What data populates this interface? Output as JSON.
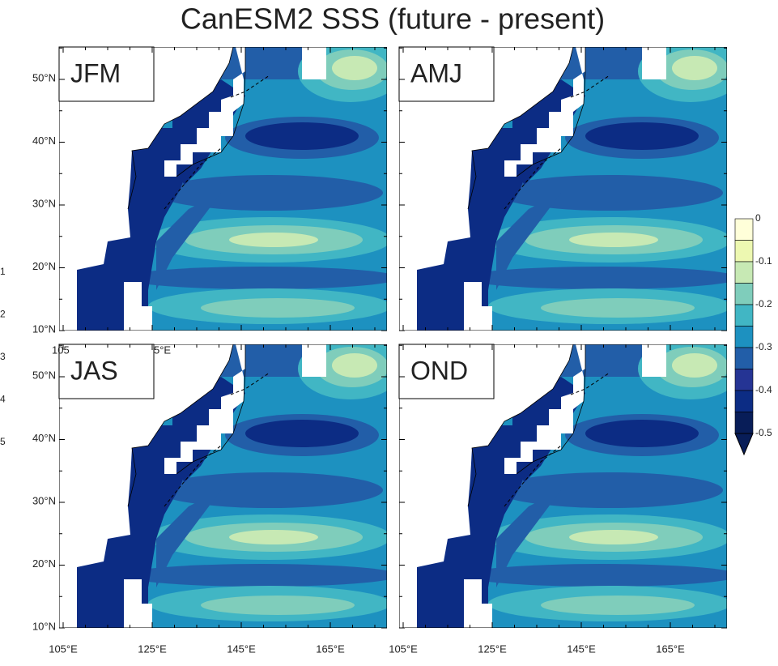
{
  "title": "CanESM2 SSS (future - present)",
  "panels": [
    {
      "label": "JFM"
    },
    {
      "label": "AMJ"
    },
    {
      "label": "JAS"
    },
    {
      "label": "OND"
    }
  ],
  "lat_labels": [
    "50°N",
    "40°N",
    "30°N",
    "20°N",
    "10°N"
  ],
  "lon_labels": [
    "105°E",
    "125°E",
    "145°E",
    "165°E"
  ],
  "colorbar": {
    "labels": [
      "0",
      "-0.1",
      "-0.2",
      "-0.3",
      "-0.4",
      "-0.5"
    ]
  },
  "edge_fragments": [
    "1",
    "2",
    "3",
    "4",
    "5"
  ],
  "overlap_fragments": [
    "105",
    "5°E"
  ]
}
